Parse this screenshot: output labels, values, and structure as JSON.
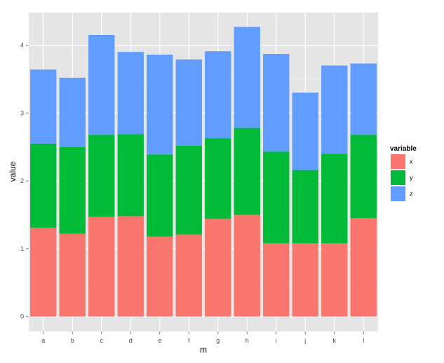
{
  "chart_data": {
    "type": "bar",
    "stacked": true,
    "title": "",
    "xlabel": "m",
    "ylabel": "value",
    "categories": [
      "a",
      "b",
      "c",
      "d",
      "e",
      "f",
      "g",
      "h",
      "i",
      "j",
      "k",
      "l"
    ],
    "series": [
      {
        "name": "x",
        "color": "#F8766D",
        "values": [
          1.31,
          1.22,
          1.47,
          1.48,
          1.18,
          1.21,
          1.44,
          1.5,
          1.08,
          1.08,
          1.08,
          1.45
        ]
      },
      {
        "name": "y",
        "color": "#00BA38",
        "values": [
          1.24,
          1.28,
          1.21,
          1.21,
          1.21,
          1.31,
          1.19,
          1.28,
          1.35,
          1.08,
          1.32,
          1.23
        ]
      },
      {
        "name": "z",
        "color": "#619CFF",
        "values": [
          1.09,
          1.02,
          1.47,
          1.21,
          1.47,
          1.27,
          1.28,
          1.49,
          1.44,
          1.14,
          1.3,
          1.05
        ]
      }
    ],
    "yticks": [
      0,
      1,
      2,
      3,
      4
    ],
    "ylim": [
      -0.22,
      4.48
    ],
    "grid": true,
    "panel_background": "#E5E5E5",
    "grid_color": "#FFFFFF",
    "legend": {
      "title": "variable",
      "position": "right",
      "entries": [
        "x",
        "y",
        "z"
      ]
    }
  }
}
